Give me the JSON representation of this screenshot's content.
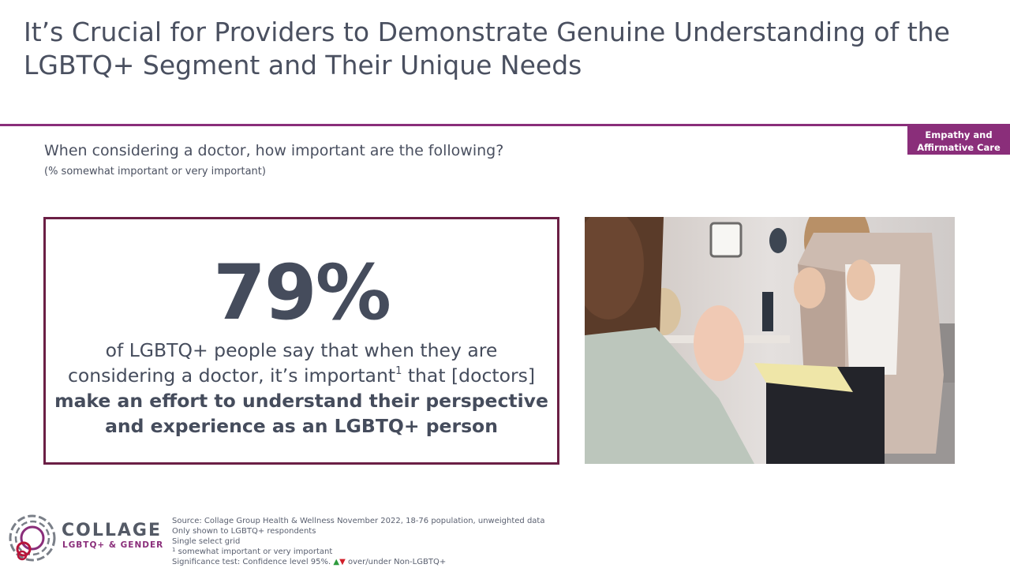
{
  "header": {
    "title": "It’s Crucial for Providers to Demonstrate Genuine Understanding of the LGBTQ+ Segment and Their Unique Needs",
    "tag_line1": "Empathy and",
    "tag_line2": "Affirmative Care"
  },
  "question": {
    "text": "When considering a doctor, how important are the following?",
    "subtext": "(% somewhat important or very important)"
  },
  "stat": {
    "value": "79%",
    "text_part1": "of LGBTQ+ people say that when they are considering a doctor, it’s important",
    "superscript": "1",
    "text_part2": " that [doctors]",
    "text_bold": "make an effort to understand their perspective and experience as an LGBTQ+ person"
  },
  "logo": {
    "word": "COLLAGE",
    "subtitle": "LGBTQ+ & GENDER"
  },
  "footnotes": {
    "source": "Source: Collage Group Health & Wellness November 2022, 18-76 population, unweighted data",
    "shown_to": "Only shown to LGBTQ+ respondents",
    "question_type": "Single select grid",
    "note_marker": "1",
    "note_text": " somewhat important or very important",
    "significance_prefix": "Significance test: Confidence level 95%.",
    "up_symbol": "▲",
    "down_symbol": "▼",
    "significance_suffix": " over/under Non-LGBTQ+"
  },
  "colors": {
    "accent_purple": "#8a2e7a",
    "box_border": "#6b1f45",
    "text_dark": "#454c5c",
    "up_green": "#2e9b3e",
    "down_red": "#d11f2a"
  }
}
